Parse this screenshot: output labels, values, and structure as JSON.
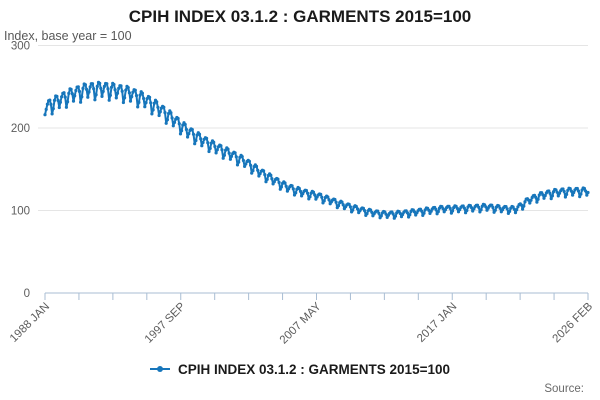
{
  "chart_data": {
    "type": "line",
    "title": "CPIH INDEX 03.1.2 : GARMENTS 2015=100",
    "subtitle": "Index, base year = 100",
    "source": "Source:",
    "legend_position": "bottom",
    "grid": "horizontal-only",
    "ylim": [
      0,
      300
    ],
    "y_ticks": [
      0,
      100,
      200,
      300
    ],
    "y_gridlines": [
      100,
      200,
      300
    ],
    "x_start": "1988 JAN",
    "x_end": "2026 FEB",
    "x_tick_labels": [
      "1988 JAN",
      "1997 SEP",
      "2007 MAY",
      "2017 JAN",
      "2026 FEB"
    ],
    "x_minor_ticks_total": 17,
    "x_label_every_n_ticks": 4,
    "series": [
      {
        "name": "CPIH INDEX 03.1.2 : GARMENTS 2015=100",
        "color": "#1776bb",
        "frequency": "monthly",
        "start": "1988 JAN",
        "end": "2026 FEB",
        "points_total": 458,
        "annual_trend_jan_start_year": 1988,
        "annual_trend_jan": [
          224,
          233,
          241,
          246,
          247,
          245,
          241,
          234,
          223,
          210,
          196,
          185,
          176,
          168,
          159,
          147,
          137,
          128,
          122,
          118,
          112,
          106,
          101,
          97,
          95,
          96,
          98,
          100,
          102,
          102,
          103,
          104,
          102,
          101,
          113,
          119,
          122,
          123,
          123
        ],
        "seasonal_pct_by_month": [
          -3.5,
          -1,
          1.5,
          3,
          3,
          0.5,
          -5,
          -2.5,
          1.5,
          3.5,
          3,
          0.5
        ]
      }
    ],
    "colors": {
      "line": "#1776bb",
      "gridline": "#e5e5e5",
      "axis": "#a9bdd3",
      "tick_text": "#5d5d5d",
      "title_text": "#1a1a1a",
      "subtitle_text": "#585858",
      "source_text": "#6a6a6a",
      "background": "#ffffff"
    }
  }
}
